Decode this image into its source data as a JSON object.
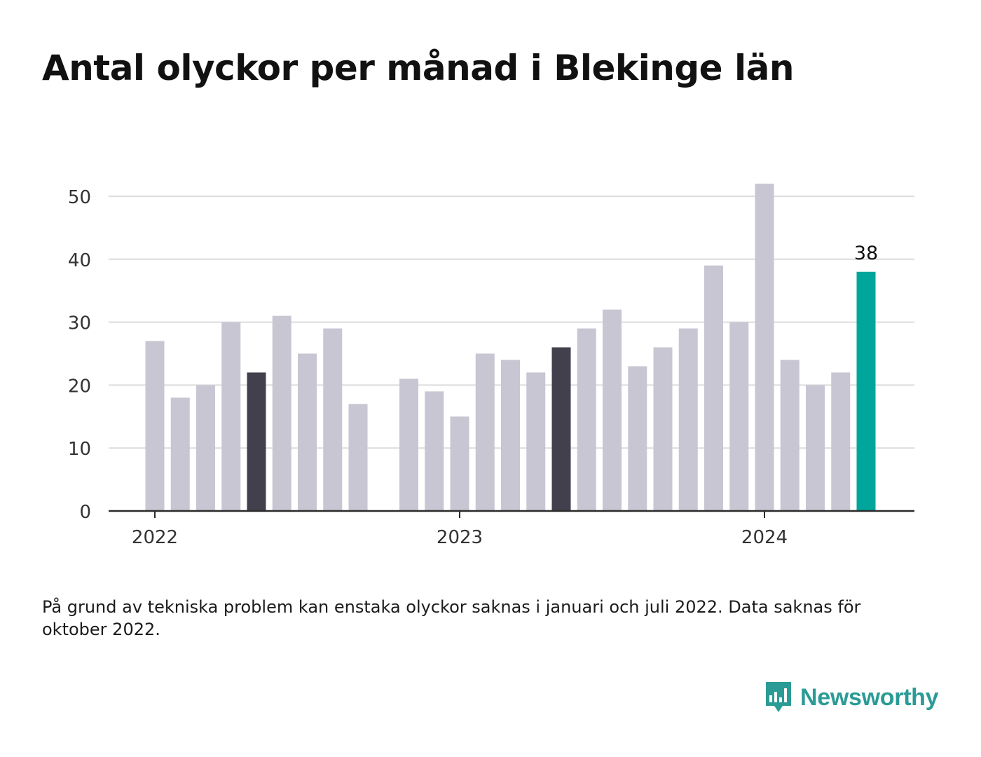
{
  "title": "Antal olyckor per månad i Blekinge län",
  "note": "På grund av tekniska problem kan enstaka olyckor saknas i januari och juli 2022. Data saknas för oktober 2022.",
  "brand": {
    "name": "Newsworthy",
    "icon": "newsworthy-logo-icon",
    "color": "#2b9b95"
  },
  "colors": {
    "bar_default": "#c8c6d2",
    "bar_highlight_dark": "#42404d",
    "bar_latest": "#00a59c",
    "grid": "#dcdcdc",
    "axis": "#2b2b2b"
  },
  "chart_data": {
    "type": "bar",
    "title": "Antal olyckor per månad i Blekinge län",
    "xlabel": "",
    "ylabel": "",
    "ylim": [
      0,
      50
    ],
    "yticks": [
      0,
      10,
      20,
      30,
      40,
      50
    ],
    "xticks": [
      {
        "label": "2022",
        "category": "2022-01"
      },
      {
        "label": "2023",
        "category": "2023-01"
      },
      {
        "label": "2024",
        "category": "2024-01"
      }
    ],
    "grid": true,
    "categories": [
      "2022-01",
      "2022-02",
      "2022-03",
      "2022-04",
      "2022-05",
      "2022-06",
      "2022-07",
      "2022-08",
      "2022-09",
      "2022-10",
      "2022-11",
      "2022-12",
      "2023-01",
      "2023-02",
      "2023-03",
      "2023-04",
      "2023-05",
      "2023-06",
      "2023-07",
      "2023-08",
      "2023-09",
      "2023-10",
      "2023-11",
      "2023-12",
      "2024-01",
      "2024-02",
      "2024-03",
      "2024-04",
      "2024-05"
    ],
    "values": [
      27,
      18,
      20,
      30,
      22,
      31,
      25,
      29,
      17,
      null,
      21,
      19,
      15,
      25,
      24,
      22,
      26,
      29,
      32,
      23,
      26,
      29,
      39,
      30,
      52,
      24,
      20,
      22,
      38
    ],
    "highlight_dark": [
      "2022-05",
      "2023-05"
    ],
    "highlight_latest": "2024-05",
    "data_labels": [
      {
        "category": "2024-05",
        "text": "38"
      }
    ]
  }
}
